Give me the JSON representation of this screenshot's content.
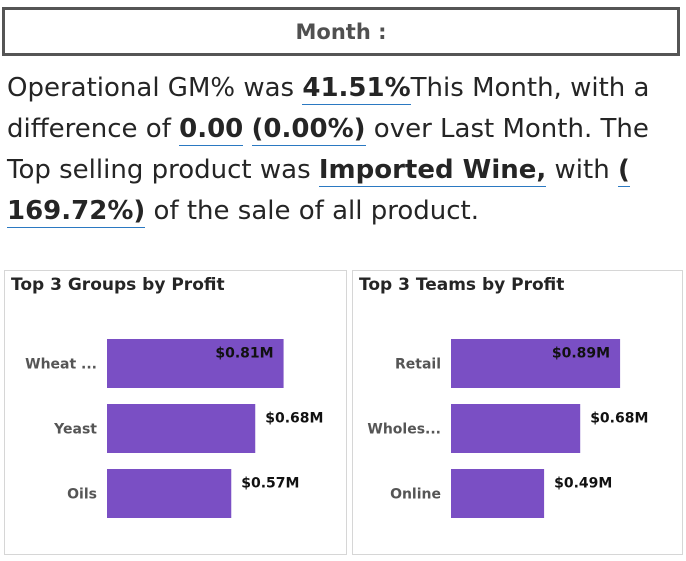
{
  "slicer": {
    "label": "Month :"
  },
  "narrative": {
    "t1": "Operational GM% was ",
    "gm": "41.51%",
    "t2": "This Month, with a difference of ",
    "diff": "0.00",
    "t3": " ",
    "diff_pct": "(0.00%)",
    "t4": " over Last Month. The Top selling product was ",
    "top_product": "Imported Wine,",
    "t5": " with ",
    "share": "( 169.72%)",
    "t6": " of the sale of all product."
  },
  "colors": {
    "bar": "#7a4fc4",
    "highlight_underline": "#2b79c2"
  },
  "chart_data": [
    {
      "type": "bar",
      "orientation": "horizontal",
      "title": "Top 3 Groups by Profit",
      "categories": [
        "Wheat ...",
        "Yeast",
        "Oils"
      ],
      "values": [
        0.81,
        0.68,
        0.57
      ],
      "value_labels": [
        "$0.81M",
        "$0.68M",
        "$0.57M"
      ],
      "unit": "$M",
      "xlim": [
        0,
        1.2
      ],
      "grid": false,
      "legend": "none"
    },
    {
      "type": "bar",
      "orientation": "horizontal",
      "title": "Top 3 Teams by Profit",
      "categories": [
        "Retail",
        "Wholes...",
        "Online"
      ],
      "values": [
        0.89,
        0.68,
        0.49
      ],
      "value_labels": [
        "$0.89M",
        "$0.68M",
        "$0.49M"
      ],
      "unit": "$M",
      "xlim": [
        0,
        1.2
      ],
      "grid": false,
      "legend": "none"
    }
  ]
}
